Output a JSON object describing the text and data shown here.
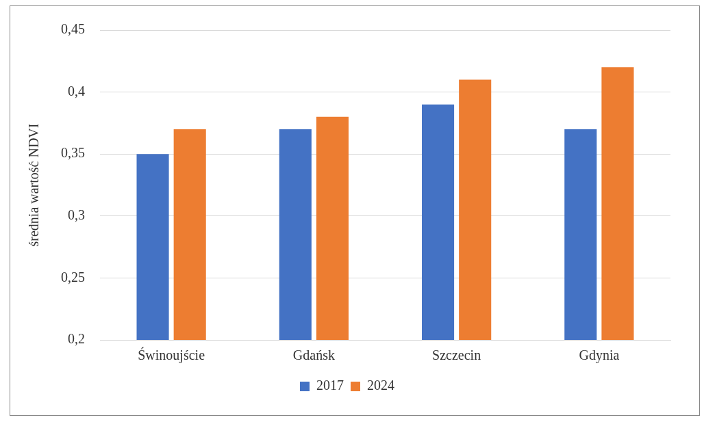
{
  "chart_data": {
    "type": "bar",
    "ylabel": "średnia wartość NDVI",
    "categories": [
      "Świnoujście",
      "Gdańsk",
      "Szczecin",
      "Gdynia"
    ],
    "series": [
      {
        "name": "2017",
        "color": "#4472c4",
        "values": [
          0.35,
          0.37,
          0.39,
          0.37
        ]
      },
      {
        "name": "2024",
        "color": "#ed7d31",
        "values": [
          0.37,
          0.38,
          0.41,
          0.42
        ]
      }
    ],
    "ylim": [
      0.2,
      0.45
    ],
    "yticks": [
      {
        "value": 0.2,
        "label": "0,2"
      },
      {
        "value": 0.25,
        "label": "0,25"
      },
      {
        "value": 0.3,
        "label": "0,3"
      },
      {
        "value": 0.35,
        "label": "0,35"
      },
      {
        "value": 0.4,
        "label": "0,4"
      },
      {
        "value": 0.45,
        "label": "0,45"
      }
    ],
    "grid": "y",
    "legend": "bottom"
  }
}
